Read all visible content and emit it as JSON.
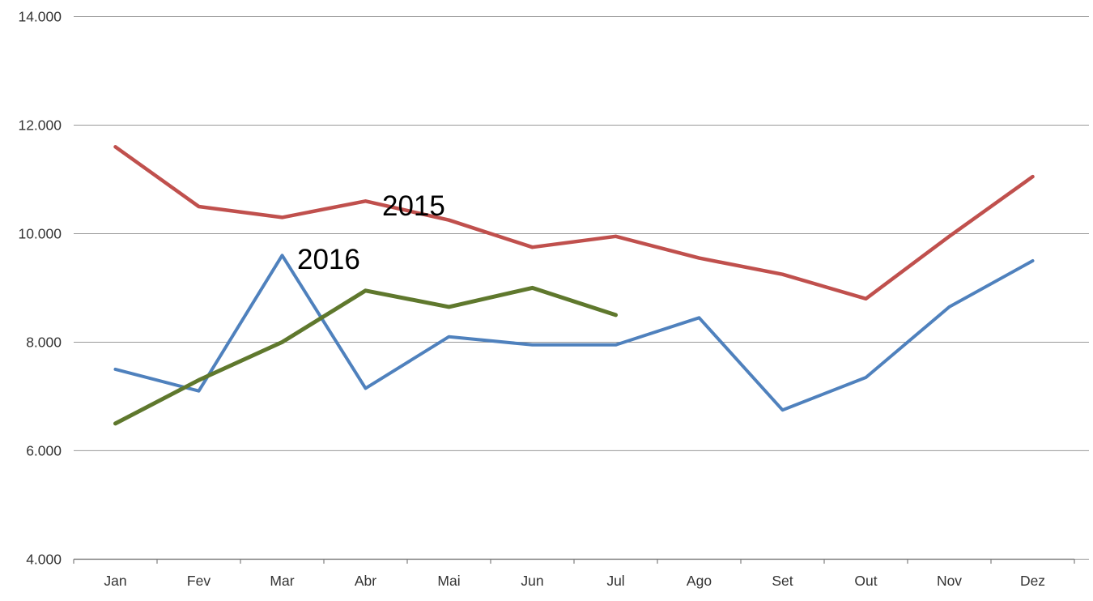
{
  "chart_data": {
    "type": "line",
    "title": "",
    "xlabel": "",
    "ylabel": "",
    "categories": [
      "Jan",
      "Fev",
      "Mar",
      "Abr",
      "Mai",
      "Jun",
      "Jul",
      "Ago",
      "Set",
      "Out",
      "Nov",
      "Dez"
    ],
    "series": [
      {
        "name": "",
        "semantic": "unlabeled-blue-series",
        "color": "#4F81BD",
        "values": [
          7500,
          7100,
          9600,
          7150,
          8100,
          7950,
          7950,
          8450,
          6750,
          7350,
          8650,
          9500
        ]
      },
      {
        "name": "2015",
        "semantic": "series-2015",
        "color": "#C0504D",
        "values": [
          11600,
          10500,
          10300,
          10600,
          10250,
          9750,
          9950,
          9550,
          9250,
          8800,
          9950,
          11050
        ]
      },
      {
        "name": "2016",
        "semantic": "series-2016",
        "color": "#5F782D",
        "values": [
          6500,
          7300,
          8000,
          8950,
          8650,
          9000,
          8500,
          null,
          null,
          null,
          null,
          null
        ]
      }
    ],
    "annotations": [
      {
        "text": "2015",
        "x": 472,
        "y": 266,
        "color": "#000000"
      },
      {
        "text": "2016",
        "x": 367,
        "y": 332,
        "color": "#000000"
      }
    ],
    "y_axis": {
      "min": 4000,
      "max": 14000,
      "step": 2000,
      "tick_labels": [
        "14.000",
        "12.000",
        "10.000",
        "8.000",
        "6.000",
        "4.000"
      ],
      "tick_values": [
        14000,
        12000,
        10000,
        8000,
        6000,
        4000
      ]
    },
    "x_axis": {
      "tick_labels": [
        "Jan",
        "Fev",
        "Mar",
        "Abr",
        "Mai",
        "Jun",
        "Jul",
        "Ago",
        "Set",
        "Out",
        "Nov",
        "Dez"
      ]
    },
    "legend_position": "none",
    "grid": true,
    "colors": {
      "gridline": "#999999",
      "axis_line": "#7F7F7F",
      "tick_label_text": "#333333",
      "background": "#FFFFFF"
    }
  }
}
